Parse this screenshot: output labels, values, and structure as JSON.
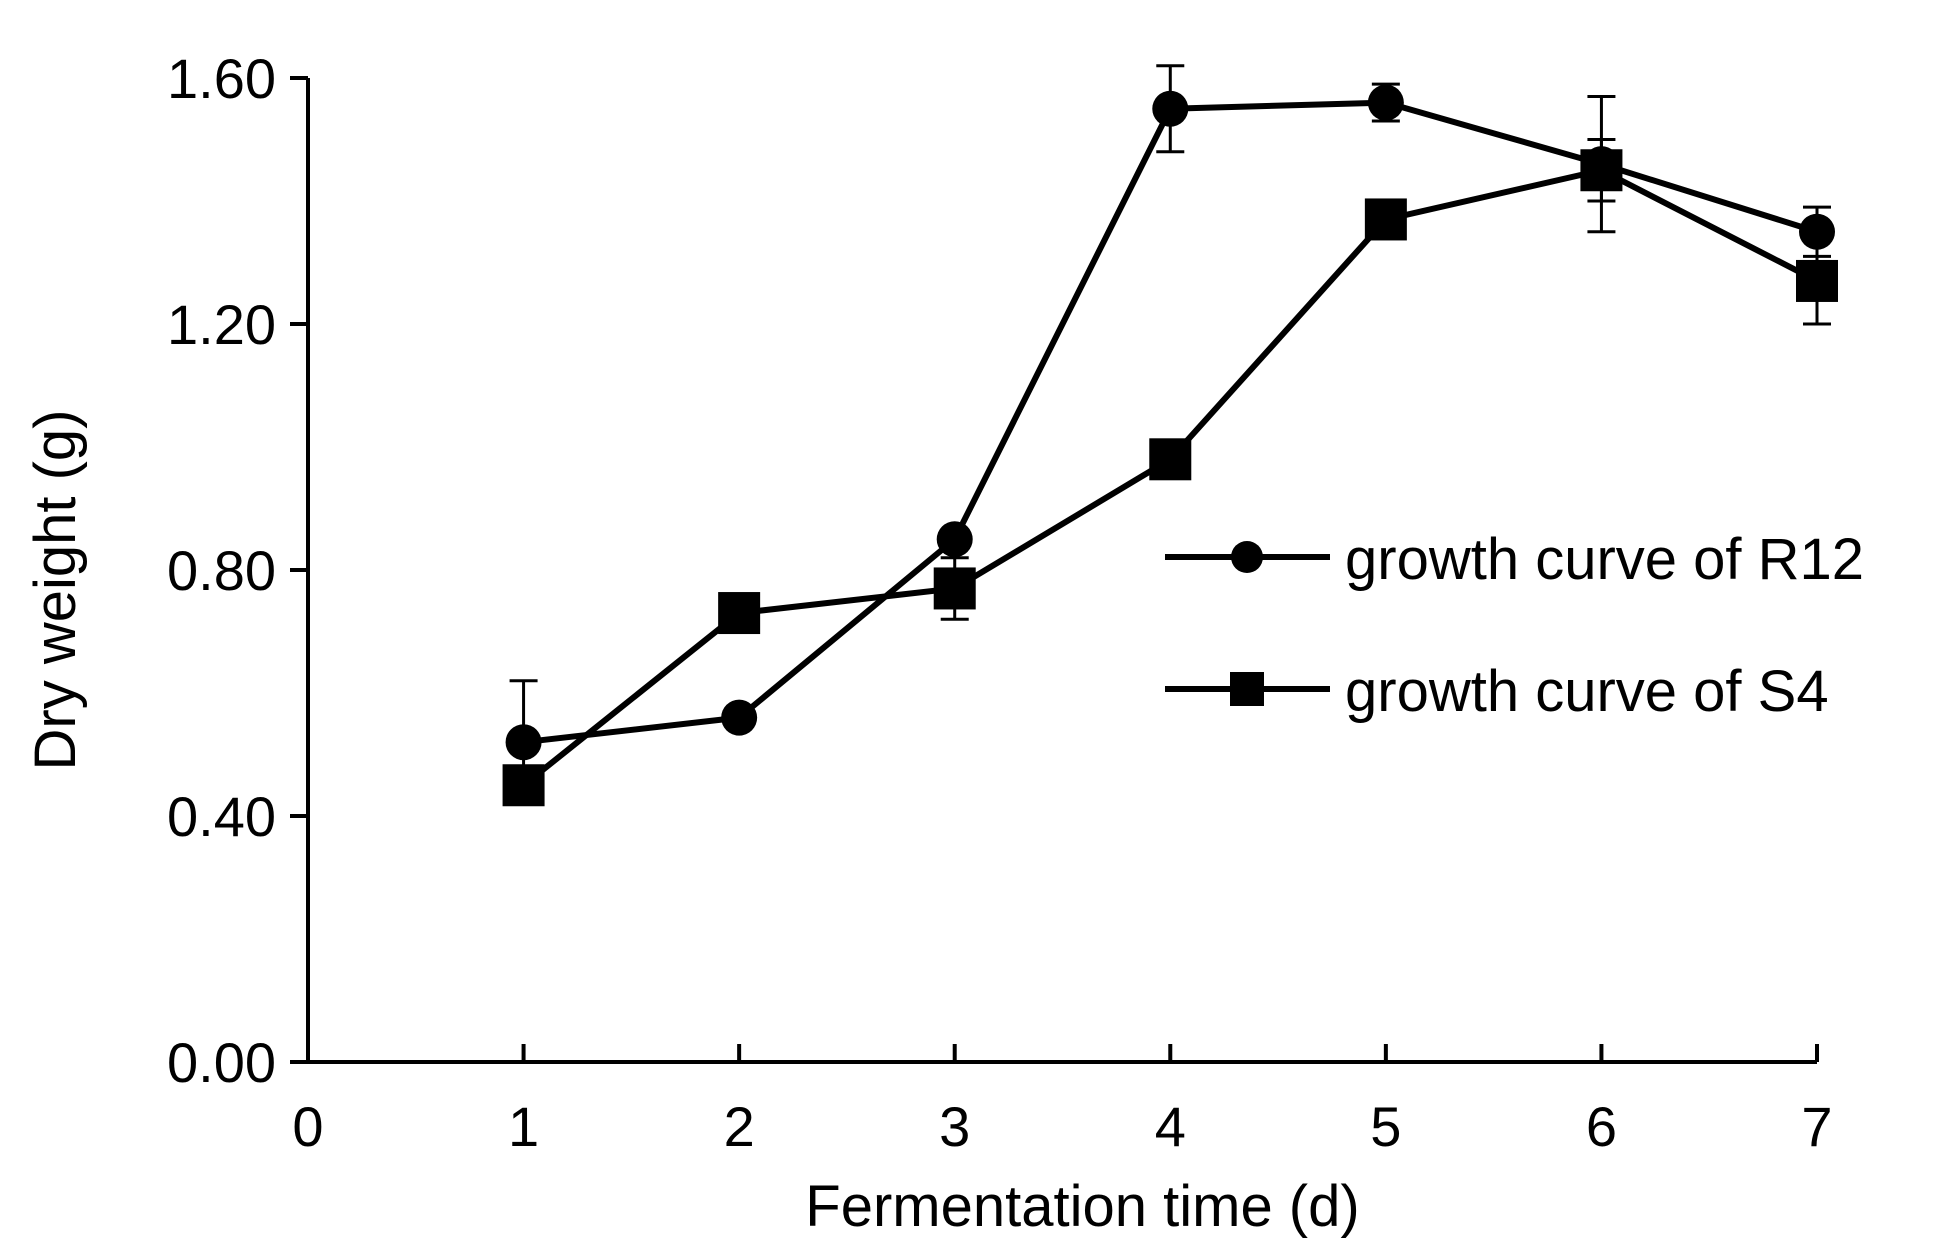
{
  "chart_data": {
    "type": "line",
    "title": "",
    "xlabel": "Fermentation time (d)",
    "ylabel": "Dry weight (g)",
    "xlim": [
      0,
      7
    ],
    "ylim": [
      0,
      1.6
    ],
    "x_ticks": [
      "0",
      "1",
      "2",
      "3",
      "4",
      "5",
      "6",
      "7"
    ],
    "y_ticks": [
      "0.00",
      "0.40",
      "0.80",
      "1.20",
      "1.60"
    ],
    "grid": false,
    "legend_position": "right",
    "x": [
      1,
      2,
      3,
      4,
      5,
      6,
      7
    ],
    "series": [
      {
        "name": "growth curve of R12",
        "marker": "circle",
        "values": [
          0.52,
          0.56,
          0.85,
          1.55,
          1.56,
          1.46,
          1.35
        ],
        "errors": [
          0.1,
          0.0,
          0.0,
          0.07,
          0.03,
          0.11,
          0.04
        ]
      },
      {
        "name": "growth curve of S4",
        "marker": "square",
        "values": [
          0.45,
          0.73,
          0.77,
          0.98,
          1.37,
          1.45,
          1.27
        ],
        "errors": [
          0.03,
          0.0,
          0.05,
          0.0,
          0.0,
          0.05,
          0.07
        ]
      }
    ],
    "color": "#000000"
  }
}
